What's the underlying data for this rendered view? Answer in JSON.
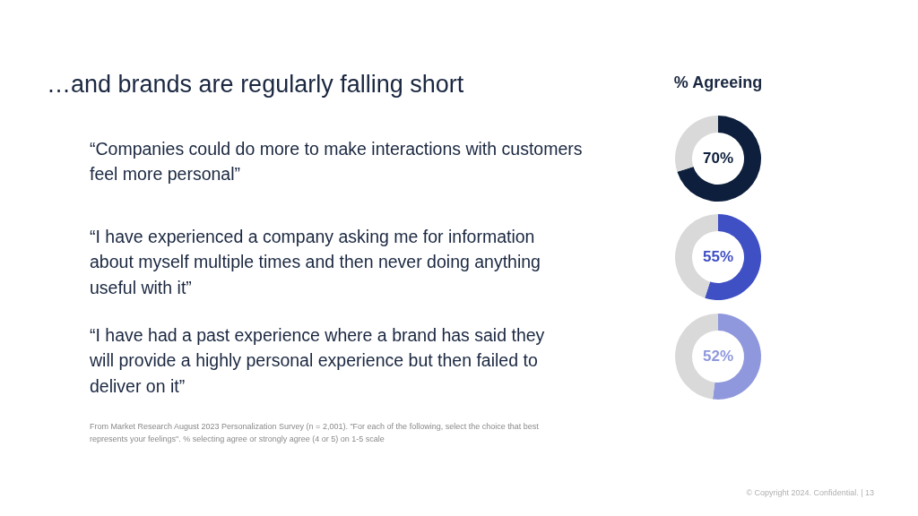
{
  "chart_data": [
    {
      "type": "other",
      "title": "…and brands are regularly falling short",
      "annotations": [
        "% Agreeing",
        "From Market Research August 2023 Personalization Survey (n = 2,001). \"For each of the following, select the choice that best represents your feelings\".  % selecting agree or strongly agree (4 or 5) on 1-5 scale",
        "© Copyright 2024. Confidential.  |  13"
      ]
    },
    {
      "type": "donut",
      "title": "“Companies could do more to make interactions with customers feel more personal”",
      "categories": [
        null,
        null
      ],
      "values": [
        70,
        30
      ],
      "colors": [
        "#0d1f3c",
        "#d9d9d9"
      ],
      "value_labels": [
        "70%",
        null
      ]
    },
    {
      "type": "donut",
      "title": "“I have experienced a company asking me for information about myself multiple times and then never doing anything useful with it”",
      "categories": [
        null,
        null
      ],
      "values": [
        55,
        45
      ],
      "colors": [
        "#3f4fc4",
        "#d9d9d9"
      ],
      "value_labels": [
        "55%",
        null
      ]
    },
    {
      "type": "donut",
      "title": "“I have had a past experience where a brand has said they will provide a highly personal experience but then failed to deliver on it”",
      "categories": [
        null,
        null
      ],
      "values": [
        52,
        48
      ],
      "colors": [
        "#8f98dc",
        "#d9d9d9"
      ],
      "value_labels": [
        "52%",
        null
      ]
    }
  ]
}
